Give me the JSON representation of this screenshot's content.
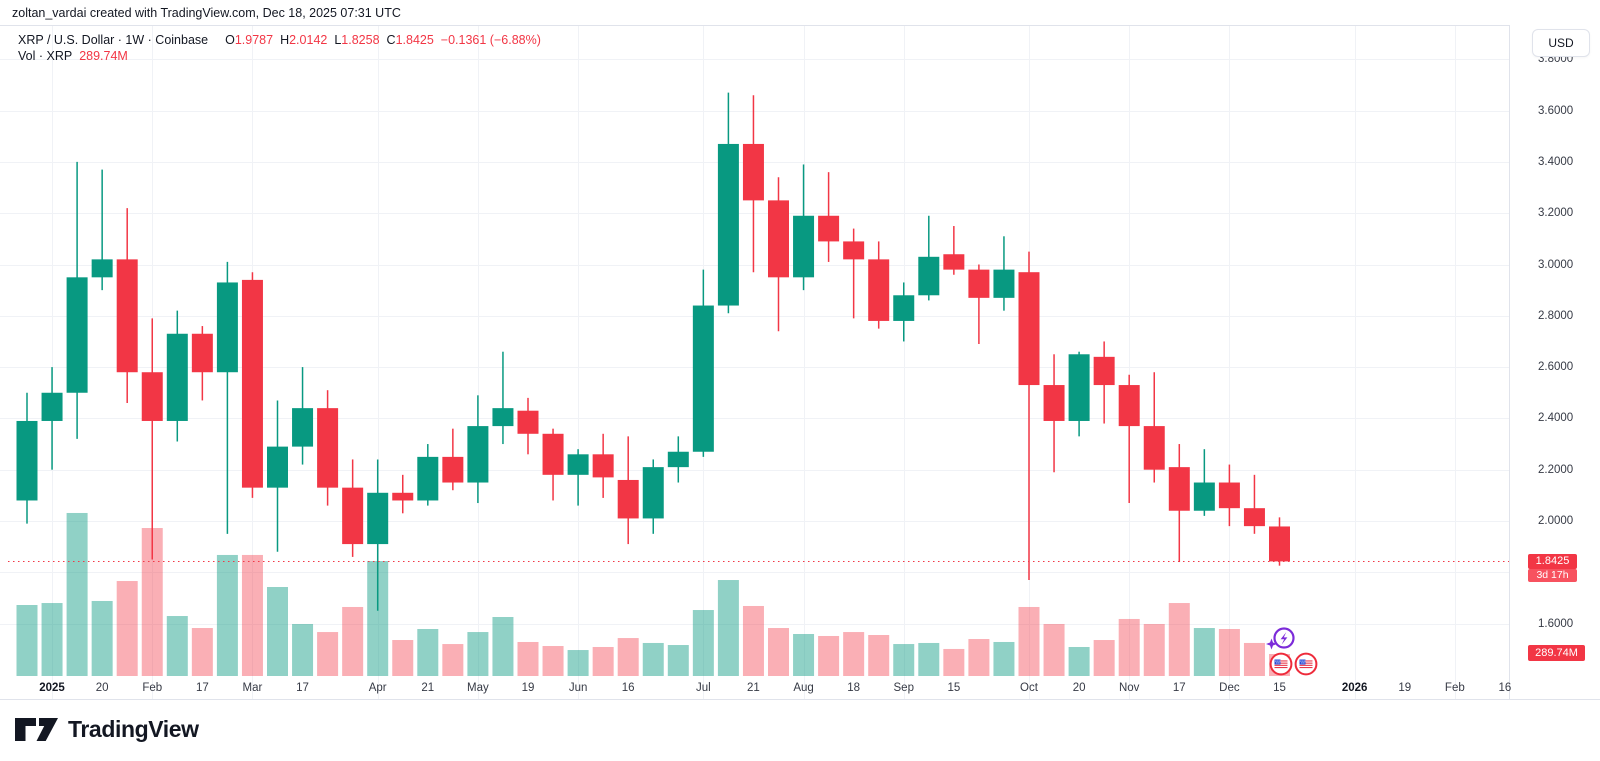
{
  "attribution": {
    "text": "zoltan_vardai created with TradingView.com, Dec 18, 2025 07:31 UTC"
  },
  "legend": {
    "title": "XRP / U.S. Dollar · 1W · Coinbase",
    "o_label": "O",
    "o_value": "1.9787",
    "h_label": "H",
    "h_value": "2.0142",
    "l_label": "L",
    "l_value": "1.8258",
    "c_label": "C",
    "c_value": "1.8425",
    "change": "−0.1361 (−6.88%)",
    "vol_title": "Vol · XRP",
    "vol_value": "289.74M"
  },
  "price_scale": {
    "currency_button": "USD",
    "ticks": [
      {
        "label": "3.8000",
        "price": 3.8
      },
      {
        "label": "3.6000",
        "price": 3.6
      },
      {
        "label": "3.4000",
        "price": 3.4
      },
      {
        "label": "3.2000",
        "price": 3.2
      },
      {
        "label": "3.0000",
        "price": 3.0
      },
      {
        "label": "2.8000",
        "price": 2.8
      },
      {
        "label": "2.6000",
        "price": 2.6
      },
      {
        "label": "2.4000",
        "price": 2.4
      },
      {
        "label": "2.2000",
        "price": 2.2
      },
      {
        "label": "2.0000",
        "price": 2.0
      },
      {
        "label": "1.6000",
        "price": 1.6
      }
    ],
    "grid_prices": [
      3.8,
      3.6,
      3.4,
      3.2,
      3.0,
      2.8,
      2.6,
      2.4,
      2.2,
      2.0,
      1.8,
      1.6
    ],
    "last_price_label": "1.8425",
    "countdown": "3d 17h",
    "volume_label": "289.74M"
  },
  "time_scale": {
    "ticks": [
      {
        "label": "2025",
        "week": 1,
        "bold": true
      },
      {
        "label": "20",
        "week": 3
      },
      {
        "label": "Feb",
        "week": 5
      },
      {
        "label": "17",
        "week": 7
      },
      {
        "label": "Mar",
        "week": 9
      },
      {
        "label": "17",
        "week": 11
      },
      {
        "label": "Apr",
        "week": 14
      },
      {
        "label": "21",
        "week": 16
      },
      {
        "label": "May",
        "week": 18
      },
      {
        "label": "19",
        "week": 20
      },
      {
        "label": "Jun",
        "week": 22
      },
      {
        "label": "16",
        "week": 24
      },
      {
        "label": "Jul",
        "week": 27
      },
      {
        "label": "21",
        "week": 29
      },
      {
        "label": "Aug",
        "week": 31
      },
      {
        "label": "18",
        "week": 33
      },
      {
        "label": "Sep",
        "week": 35
      },
      {
        "label": "15",
        "week": 37
      },
      {
        "label": "Oct",
        "week": 40
      },
      {
        "label": "20",
        "week": 42
      },
      {
        "label": "Nov",
        "week": 44
      },
      {
        "label": "17",
        "week": 46
      },
      {
        "label": "Dec",
        "week": 48
      },
      {
        "label": "15",
        "week": 50
      },
      {
        "label": "2026",
        "week": 53,
        "bold": true
      },
      {
        "label": "19",
        "week": 55
      },
      {
        "label": "Feb",
        "week": 57
      },
      {
        "label": "16",
        "week": 59
      }
    ],
    "month_grid_weeks": [
      1,
      5,
      9,
      14,
      18,
      22,
      27,
      31,
      35,
      40,
      44,
      48,
      53,
      57
    ]
  },
  "colors": {
    "up": "#089981",
    "down": "#f23645",
    "vol_up": "rgba(8,153,129,0.45)",
    "vol_down": "rgba(242,54,69,0.40)",
    "grid": "#f0f2f6",
    "dotted_line": "#f23645",
    "label_bg": "#f23645",
    "border": "#e0e3eb",
    "purple_badge": "#7c2bd9",
    "flag_ring": "#ee2b3b"
  },
  "logo": {
    "text": "TradingView"
  },
  "chart_data": {
    "type": "candlestick",
    "title": "XRP / U.S. Dollar · 1W · Coinbase",
    "interval": "1W",
    "quote_currency": "USD",
    "last_close": 1.8425,
    "change": -0.1361,
    "change_pct": -6.88,
    "countdown_to_bar_close": "3d 17h",
    "current_bar_volume": "289.74M",
    "ylim": [
      1.55,
      3.85
    ],
    "y_ticks": [
      3.8,
      3.6,
      3.4,
      3.2,
      3.0,
      2.8,
      2.6,
      2.4,
      2.2,
      2.0,
      1.8,
      1.6
    ],
    "grid": true,
    "volume_unit": "M (estimated, XRP)",
    "columns": [
      "week_start",
      "open",
      "high",
      "low",
      "close",
      "volume_m"
    ],
    "candles": [
      [
        "2024-12-30",
        2.08,
        2.5,
        1.99,
        2.39,
        935
      ],
      [
        "2025-01-06",
        2.39,
        2.6,
        2.2,
        2.5,
        961
      ],
      [
        "2025-01-13",
        2.5,
        3.4,
        2.32,
        2.95,
        2147
      ],
      [
        "2025-01-20",
        2.95,
        3.37,
        2.9,
        3.02,
        988
      ],
      [
        "2025-01-27",
        3.02,
        3.22,
        2.46,
        2.58,
        1251
      ],
      [
        "2025-02-03",
        2.58,
        2.79,
        1.85,
        2.39,
        1949
      ],
      [
        "2025-02-10",
        2.39,
        2.82,
        2.31,
        2.73,
        790
      ],
      [
        "2025-02-17",
        2.73,
        2.76,
        2.47,
        2.58,
        632
      ],
      [
        "2025-02-24",
        2.58,
        3.01,
        1.95,
        2.93,
        1594
      ],
      [
        "2025-03-03",
        2.94,
        2.97,
        2.09,
        2.13,
        1594
      ],
      [
        "2025-03-10",
        2.13,
        2.47,
        1.88,
        2.29,
        1172
      ],
      [
        "2025-03-17",
        2.29,
        2.6,
        2.22,
        2.44,
        685
      ],
      [
        "2025-03-24",
        2.44,
        2.51,
        2.06,
        2.13,
        579
      ],
      [
        "2025-03-31",
        2.13,
        2.24,
        1.86,
        1.91,
        909
      ],
      [
        "2025-04-07",
        1.91,
        2.24,
        1.65,
        2.11,
        1514
      ],
      [
        "2025-04-14",
        2.11,
        2.18,
        2.03,
        2.08,
        474
      ],
      [
        "2025-04-21",
        2.08,
        2.3,
        2.06,
        2.25,
        619
      ],
      [
        "2025-04-28",
        2.25,
        2.36,
        2.12,
        2.15,
        421
      ],
      [
        "2025-05-05",
        2.15,
        2.49,
        2.07,
        2.37,
        579
      ],
      [
        "2025-05-12",
        2.37,
        2.66,
        2.3,
        2.44,
        777
      ],
      [
        "2025-05-19",
        2.43,
        2.48,
        2.26,
        2.34,
        448
      ],
      [
        "2025-05-26",
        2.34,
        2.36,
        2.08,
        2.18,
        395
      ],
      [
        "2025-06-02",
        2.18,
        2.28,
        2.06,
        2.26,
        342
      ],
      [
        "2025-06-09",
        2.26,
        2.34,
        2.09,
        2.17,
        382
      ],
      [
        "2025-06-16",
        2.16,
        2.33,
        1.91,
        2.01,
        500
      ],
      [
        "2025-06-23",
        2.01,
        2.24,
        1.95,
        2.21,
        435
      ],
      [
        "2025-06-30",
        2.21,
        2.33,
        2.15,
        2.27,
        408
      ],
      [
        "2025-07-07",
        2.27,
        2.98,
        2.25,
        2.84,
        869
      ],
      [
        "2025-07-14",
        2.84,
        3.67,
        2.81,
        3.47,
        1264
      ],
      [
        "2025-07-21",
        3.47,
        3.66,
        2.97,
        3.25,
        922
      ],
      [
        "2025-07-28",
        3.25,
        3.34,
        2.74,
        2.95,
        632
      ],
      [
        "2025-08-04",
        2.95,
        3.39,
        2.9,
        3.19,
        553
      ],
      [
        "2025-08-11",
        3.19,
        3.36,
        3.01,
        3.09,
        527
      ],
      [
        "2025-08-18",
        3.09,
        3.14,
        2.79,
        3.02,
        579
      ],
      [
        "2025-08-25",
        3.02,
        3.09,
        2.75,
        2.78,
        540
      ],
      [
        "2025-09-01",
        2.78,
        2.93,
        2.7,
        2.88,
        421
      ],
      [
        "2025-09-08",
        2.88,
        3.19,
        2.86,
        3.03,
        435
      ],
      [
        "2025-09-15",
        3.04,
        3.15,
        2.96,
        2.98,
        356
      ],
      [
        "2025-09-22",
        2.98,
        3.0,
        2.69,
        2.87,
        487
      ],
      [
        "2025-09-29",
        2.87,
        3.11,
        2.82,
        2.98,
        448
      ],
      [
        "2025-10-06",
        2.97,
        3.05,
        1.77,
        2.53,
        909
      ],
      [
        "2025-10-13",
        2.53,
        2.65,
        2.19,
        2.39,
        685
      ],
      [
        "2025-10-20",
        2.39,
        2.66,
        2.33,
        2.65,
        382
      ],
      [
        "2025-10-27",
        2.64,
        2.7,
        2.38,
        2.53,
        474
      ],
      [
        "2025-11-03",
        2.53,
        2.57,
        2.07,
        2.37,
        751
      ],
      [
        "2025-11-10",
        2.37,
        2.58,
        2.15,
        2.2,
        685
      ],
      [
        "2025-11-17",
        2.21,
        2.3,
        1.84,
        2.04,
        961
      ],
      [
        "2025-11-24",
        2.04,
        2.28,
        2.02,
        2.15,
        632
      ],
      [
        "2025-12-01",
        2.15,
        2.22,
        1.98,
        2.05,
        619
      ],
      [
        "2025-12-08",
        2.05,
        2.18,
        1.95,
        1.98,
        435
      ],
      [
        "2025-12-15",
        1.9787,
        2.0142,
        1.8258,
        1.8425,
        289.74
      ]
    ]
  }
}
